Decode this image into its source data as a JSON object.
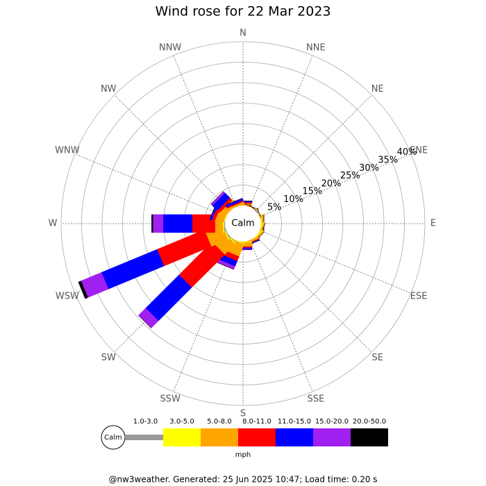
{
  "chart_data": {
    "type": "windrose",
    "title": "Wind rose for 22 Mar 2023",
    "directions": [
      "N",
      "NNE",
      "NE",
      "ENE",
      "E",
      "ESE",
      "SE",
      "SSE",
      "S",
      "SSW",
      "SW",
      "WSW",
      "W",
      "WNW",
      "NW",
      "NNW"
    ],
    "calm_label": "Calm",
    "rlim": [
      0,
      40
    ],
    "rticks": [
      {
        "value": 5,
        "label": "5%"
      },
      {
        "value": 10,
        "label": "10%"
      },
      {
        "value": 15,
        "label": "15%"
      },
      {
        "value": 20,
        "label": "20%"
      },
      {
        "value": 25,
        "label": "25%"
      },
      {
        "value": 30,
        "label": "30%"
      },
      {
        "value": 35,
        "label": "35%"
      },
      {
        "value": 40,
        "label": "40%"
      }
    ],
    "series": [
      {
        "name": "1.0-3.0",
        "color": "#999999",
        "values": [
          0,
          0,
          0,
          0,
          0,
          0,
          0,
          0,
          0,
          0,
          0.2,
          0.2,
          0.2,
          0,
          0,
          0
        ]
      },
      {
        "name": "3.0-5.0",
        "color": "#ffff00",
        "values": [
          0,
          0,
          0,
          0,
          0.2,
          0.2,
          0.3,
          0,
          0.2,
          0.2,
          0.3,
          0.3,
          0.3,
          0.2,
          0,
          0
        ]
      },
      {
        "name": "5.0-8.0",
        "color": "#ffa500",
        "values": [
          0.5,
          0.2,
          0,
          0.2,
          0.5,
          0.4,
          0.4,
          0.5,
          1,
          3.2,
          3.6,
          4.4,
          1.9,
          2,
          1.5,
          0.5
        ]
      },
      {
        "name": "8.0-11.0",
        "color": "#ff0000",
        "values": [
          0.3,
          0,
          0,
          0,
          0,
          0,
          0,
          0.2,
          0.3,
          1.2,
          11.4,
          12.5,
          5.6,
          0.8,
          0.8,
          0.3
        ]
      },
      {
        "name": "11.0-15.0",
        "color": "#0000ff",
        "values": [
          0.3,
          0,
          0,
          0,
          0,
          0,
          0,
          0.2,
          0.3,
          1.4,
          11.5,
          14.7,
          7.1,
          0.5,
          1.7,
          0.5
        ]
      },
      {
        "name": "15.0-20.0",
        "color": "#a020f0",
        "values": [
          0,
          0,
          0,
          0,
          0,
          0,
          0,
          0,
          0.2,
          0.8,
          2.5,
          5.4,
          2.5,
          0,
          0.5,
          0.1
        ]
      },
      {
        "name": "20.0-50.0",
        "color": "#000000",
        "values": [
          0,
          0,
          0,
          0,
          0,
          0,
          0,
          0,
          0,
          0,
          0,
          0.7,
          0.3,
          0,
          0,
          0
        ]
      }
    ],
    "unit": "mph",
    "footer": "@nw3weather. Generated: 25 Jun 2025 10:47; Load time: 0.20 s"
  }
}
